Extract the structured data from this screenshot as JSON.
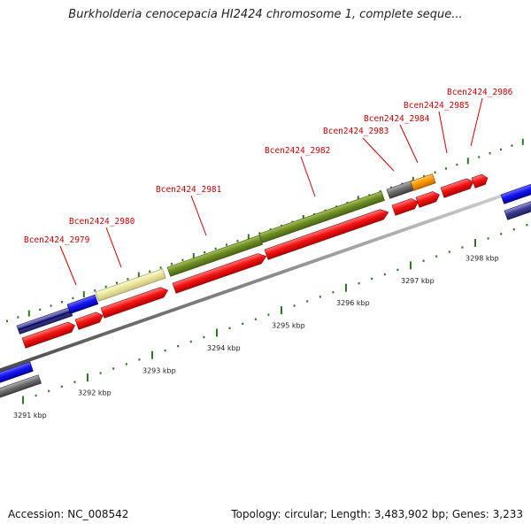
{
  "title": "Burkholderia cenocepacia HI2424 chromosome 1, complete seque...",
  "accession": "Accession: NC_008542",
  "summary": "Topology: circular; Length: 3,483,902 bp; Genes: 3,233",
  "colors": {
    "gene_label": "#cc0000",
    "tick": "#2a7a1e",
    "cds_red": "#f01010",
    "gene_blue": "#1010e0",
    "gene_grey": "#6e6e6e",
    "gene_olive": "#6e8c23",
    "gene_yellow": "#ece8a0",
    "gene_orange": "#ff9900",
    "gene_navy": "#3c3c94"
  },
  "scale": {
    "labels": [
      {
        "kbp": 3291,
        "text": "3291 kbp"
      },
      {
        "kbp": 3292,
        "text": "3292 kbp"
      },
      {
        "kbp": 3293,
        "text": "3293 kbp"
      },
      {
        "kbp": 3294,
        "text": "3294 kbp"
      },
      {
        "kbp": 3295,
        "text": "3295 kbp"
      },
      {
        "kbp": 3296,
        "text": "3296 kbp"
      },
      {
        "kbp": 3297,
        "text": "3297 kbp"
      },
      {
        "kbp": 3298,
        "text": "3298 kbp"
      }
    ]
  },
  "gene_labels": [
    {
      "text": "Bcen2424_2979"
    },
    {
      "text": "Bcen2424_2980"
    },
    {
      "text": "Bcen2424_2981"
    },
    {
      "text": "Bcen2424_2982"
    },
    {
      "text": "Bcen2424_2983"
    },
    {
      "text": "Bcen2424_2984"
    },
    {
      "text": "Bcen2424_2985"
    },
    {
      "text": "Bcen2424_2986"
    }
  ]
}
